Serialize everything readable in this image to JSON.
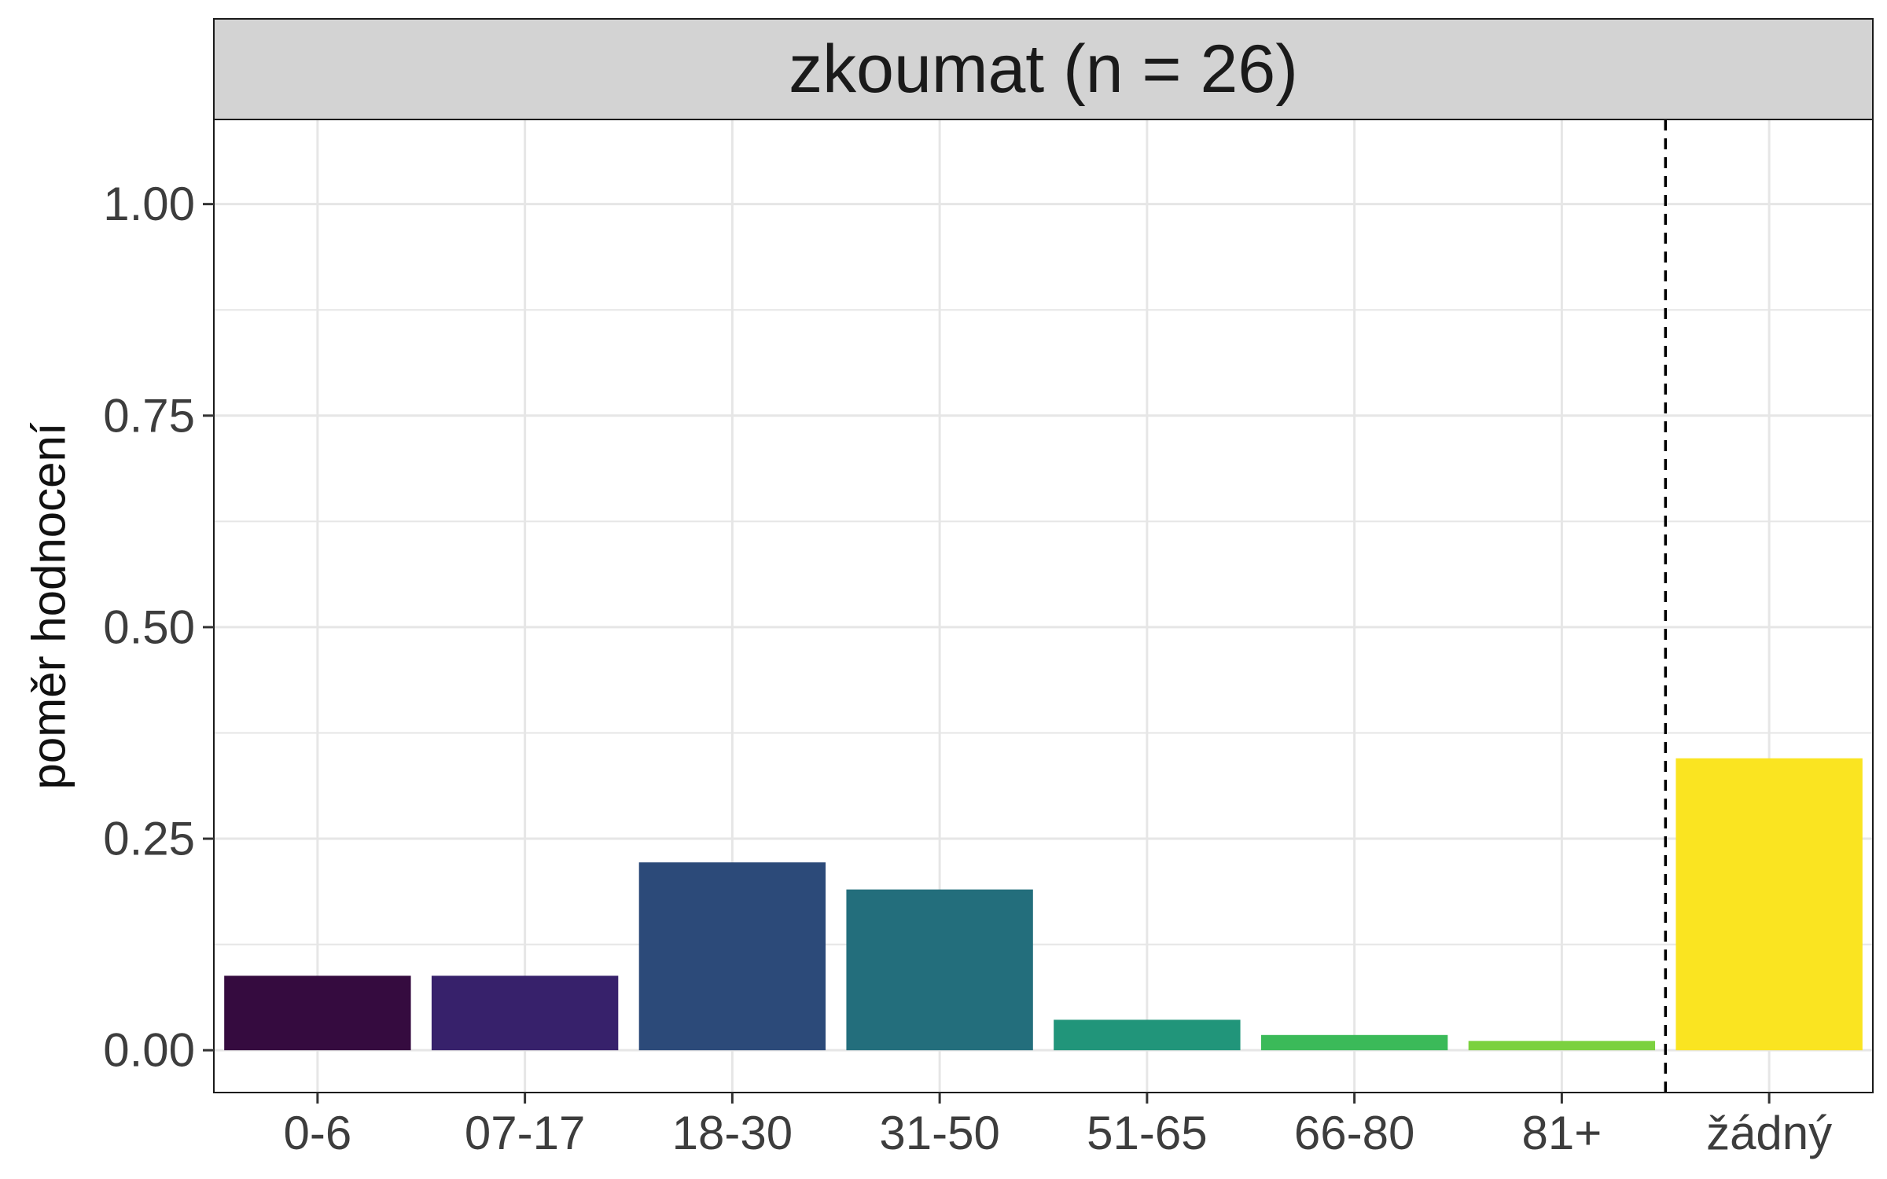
{
  "chart_data": {
    "type": "bar",
    "title": "zkoumat (n = 26)",
    "xlabel": "",
    "ylabel": "poměr hodnocení",
    "categories": [
      "0-6",
      "07-17",
      "18-30",
      "31-50",
      "51-65",
      "66-80",
      "81+",
      "žádný"
    ],
    "values": [
      0.088,
      0.088,
      0.222,
      0.19,
      0.036,
      0.018,
      0.011,
      0.345
    ],
    "colors": [
      "#350B3F",
      "#37216B",
      "#2C4A79",
      "#236E7C",
      "#21957A",
      "#3BBA59",
      "#7BD13F",
      "#FAE421"
    ],
    "ylim": [
      -0.05,
      1.1
    ],
    "yticks": [
      0,
      0.25,
      0.5,
      0.75,
      1
    ],
    "ytick_labels": [
      "0.00",
      "0.25",
      "0.50",
      "0.75",
      "1.00"
    ],
    "reference_line": {
      "after_category": "81+",
      "style": "dashed",
      "color": "#000000"
    },
    "grid": true,
    "legend": "none",
    "theme": {
      "strip_fill": "#D3D3D3",
      "panel_border": "#1a1a1a",
      "grid_color": "#E6E6E6"
    }
  }
}
